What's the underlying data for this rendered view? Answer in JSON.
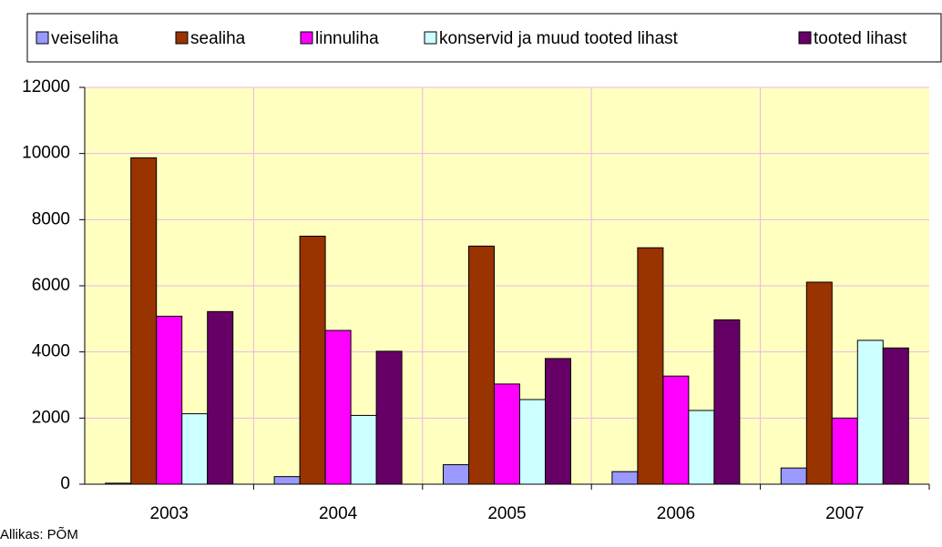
{
  "chart_data": {
    "type": "bar",
    "categories": [
      "2003",
      "2004",
      "2005",
      "2006",
      "2007"
    ],
    "series": [
      {
        "name": "veiseliha",
        "color": "#9999ff",
        "values": [
          30,
          230,
          590,
          380,
          490
        ]
      },
      {
        "name": "sealiha",
        "color": "#993300",
        "values": [
          9870,
          7500,
          7200,
          7150,
          6110
        ]
      },
      {
        "name": "linnuliha",
        "color": "#ff00ff",
        "values": [
          5080,
          4650,
          3030,
          3270,
          2000
        ]
      },
      {
        "name": "konservid ja muud tooted lihast",
        "color": "#ccffff",
        "values": [
          2130,
          2080,
          2560,
          2230,
          4350
        ]
      },
      {
        "name": "tooted lihast",
        "color": "#660066",
        "values": [
          5220,
          4020,
          3800,
          4970,
          4120
        ]
      }
    ],
    "ylim": [
      0,
      12000
    ],
    "yticks": [
      0,
      2000,
      4000,
      6000,
      8000,
      10000,
      12000
    ],
    "grid": true,
    "legend": "top",
    "source": "Allikas: PÕM"
  }
}
